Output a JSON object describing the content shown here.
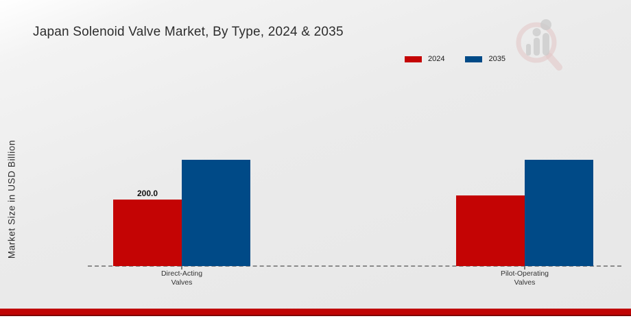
{
  "chart_data": {
    "type": "bar",
    "title": "Japan Solenoid Valve Market, By Type, 2024 & 2035",
    "ylabel": "Market Size in USD Billion",
    "xlabel": "",
    "categories": [
      {
        "line1": "Direct-Acting",
        "line2": "Valves"
      },
      {
        "line1": "Pilot-Operating",
        "line2": "Valves"
      }
    ],
    "series": [
      {
        "name": "2024",
        "color": "#c40404",
        "values": [
          200.0,
          213.0
        ],
        "value_labels": [
          "200.0",
          ""
        ]
      },
      {
        "name": "2035",
        "color": "#004a87",
        "values": [
          320.0,
          320.0
        ],
        "value_labels": [
          "",
          ""
        ]
      }
    ],
    "ylim": [
      0,
      400
    ],
    "grid": false,
    "legend_position": "top-right",
    "baseline_style": "dashed",
    "y_ticks_shown": false
  },
  "page": {
    "footer_bar_color": "#c00404",
    "background_color": "#ebebeb",
    "watermark_icon": "magnifier-bar-chart-logo"
  }
}
